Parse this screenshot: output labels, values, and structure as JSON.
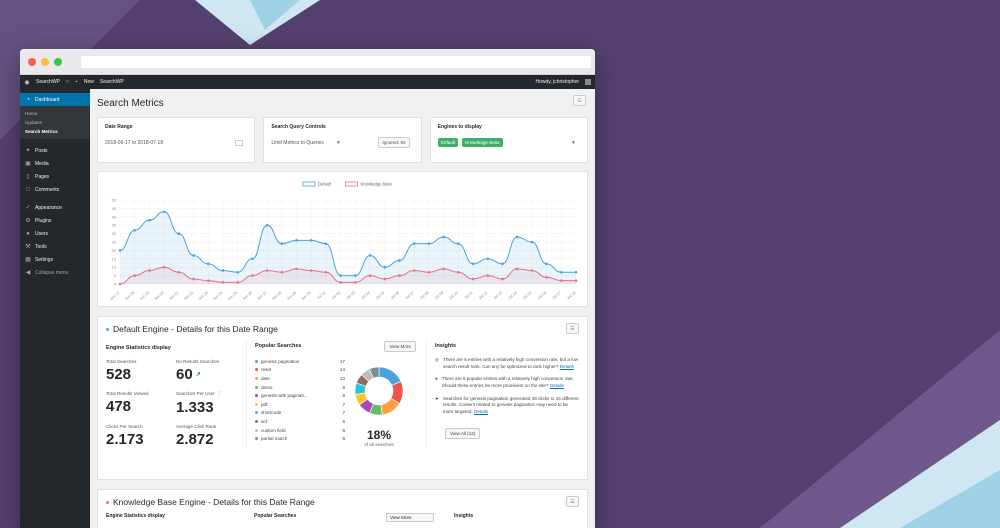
{
  "adminbar": {
    "site": "SearchWP",
    "new_label": "New",
    "site2": "SearchWP",
    "howdy": "Howdy, jchristopher"
  },
  "sidebar": {
    "dashboard": "Dashboard",
    "sub": [
      "Home",
      "Updates",
      "Search Metrics"
    ],
    "items": [
      "Posts",
      "Media",
      "Pages",
      "Comments",
      "Appearance",
      "Plugins",
      "Users",
      "Tools",
      "Settings",
      "Collapse menu"
    ]
  },
  "page": {
    "title": "Search Metrics"
  },
  "controls": {
    "date_range_label": "Date Range",
    "date_range_value": "2018-06-17 to 2018-07-18",
    "query_label": "Search Query Controls",
    "query_value": "Limit Metrics to Queries",
    "ignored": "Ignored: 55",
    "engines_label": "Engines to display",
    "engines": [
      "Default",
      "Knowledge Base"
    ]
  },
  "chart_data": {
    "type": "line",
    "legend": "top",
    "ylim": [
      0,
      50
    ],
    "yticks": [
      "0",
      "5",
      "10",
      "15",
      "20",
      "25",
      "30",
      "35",
      "40",
      "45",
      "50"
    ],
    "categories": [
      "Jun 17",
      "Jun 18",
      "Jun 19",
      "Jun 20",
      "Jun 21",
      "Jun 22",
      "Jun 23",
      "Jun 24",
      "Jun 25",
      "Jun 26",
      "Jun 27",
      "Jun 28",
      "Jun 29",
      "Jun 30",
      "Jul 01",
      "Jul 02",
      "Jul 03",
      "Jul 04",
      "Jul 05",
      "Jul 06",
      "Jul 07",
      "Jul 08",
      "Jul 09",
      "Jul 10",
      "Jul 11",
      "Jul 12",
      "Jul 13",
      "Jul 14",
      "Jul 15",
      "Jul 16",
      "Jul 17",
      "Jul 18"
    ],
    "series": [
      {
        "name": "Default",
        "color": "#4aa3df",
        "fill": "rgba(74,163,223,0.12)",
        "values": [
          20,
          32,
          38,
          43,
          30,
          17,
          12,
          8,
          7,
          15,
          35,
          24,
          26,
          26,
          24,
          5,
          5,
          17,
          10,
          14,
          24,
          24,
          28,
          24,
          12,
          15,
          12,
          28,
          25,
          12,
          7,
          7
        ]
      },
      {
        "name": "Knowledge Base",
        "color": "#e8708a",
        "fill": "rgba(232,112,138,0.10)",
        "values": [
          0,
          5,
          8,
          10,
          7,
          3,
          2,
          1,
          1,
          5,
          8,
          7,
          9,
          8,
          7,
          1,
          1,
          5,
          3,
          5,
          8,
          7,
          9,
          7,
          3,
          5,
          3,
          9,
          8,
          4,
          2,
          2
        ]
      }
    ]
  },
  "default_section": {
    "title": "Default Engine - Details for this Date Range",
    "bullet_color": "#4aa3df",
    "stats_heading": "Engine Statistics display",
    "stats": [
      {
        "label": "Total Searches",
        "value": "528"
      },
      {
        "label": "No Results Searches",
        "value": "60"
      },
      {
        "label": "Total Results Viewed",
        "value": "478"
      },
      {
        "label": "Searches Per User",
        "value": "1.333"
      },
      {
        "label": "Clicks Per Search",
        "value": "2.173"
      },
      {
        "label": "Average Click Rank",
        "value": "2.872"
      }
    ],
    "popular_heading": "Popular Searches",
    "view_more": "View More",
    "popular": [
      {
        "term": "genesis pagination",
        "count": "17",
        "color": "#4aa3df"
      },
      {
        "term": "reset",
        "count": "14",
        "color": "#ef5350"
      },
      {
        "term": "date",
        "count": "13",
        "color": "#ff9f40"
      },
      {
        "term": "demo",
        "count": "8",
        "color": "#66bb6a"
      },
      {
        "term": "genesis with paginati...",
        "count": "8",
        "color": "#ab47bc"
      },
      {
        "term": "pdf",
        "count": "7",
        "color": "#ffca28"
      },
      {
        "term": "shortcode",
        "count": "7",
        "color": "#26c6da"
      },
      {
        "term": "acf",
        "count": "6",
        "color": "#8d6e63"
      },
      {
        "term": "custom field",
        "count": "6",
        "color": "#bdbdbd"
      },
      {
        "term": "partial match",
        "count": "6",
        "color": "#78909c"
      }
    ],
    "donut_pct": "18%",
    "donut_sub": "of all searches",
    "insights_heading": "Insights",
    "insights": [
      {
        "text": "There are 5 entries with a relatively high conversion rate, but a low search result rank. Can any be optimized to rank higher?",
        "link": "Details"
      },
      {
        "text": "There are 8 popular entries with a relatively high conversion rate. Should these entries be more prominent on the site?",
        "link": "Details"
      },
      {
        "text": "Searches for genesis pagination generated 48 clicks to 16 different results. Content related to genesis pagination may need to be more targeted.",
        "link": "Details"
      }
    ],
    "view_all": "View All (12)"
  },
  "kb_section": {
    "title": "Knowledge Base Engine - Details for this Date Range",
    "bullet_color": "#e8708a",
    "stats_heading": "Engine Statistics display",
    "popular_heading": "Popular Searches",
    "view_more": "View More",
    "insights_heading": "Insights"
  }
}
